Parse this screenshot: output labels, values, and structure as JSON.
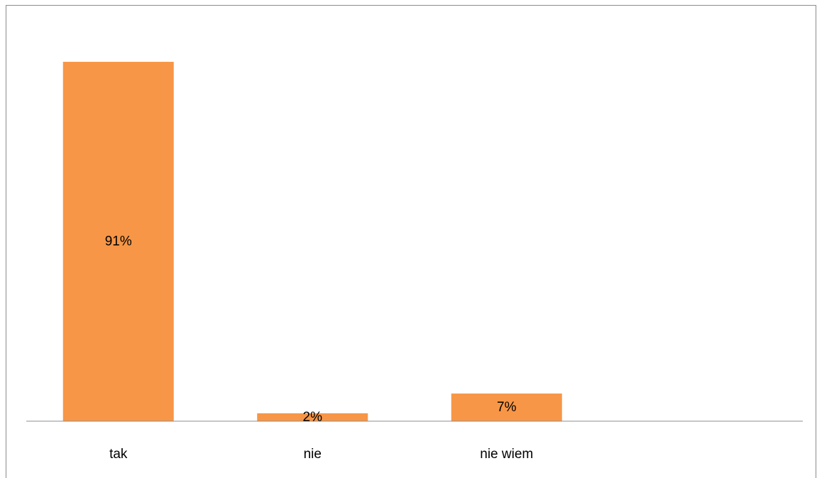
{
  "chart_data": {
    "type": "bar",
    "categories": [
      "tak",
      "nie",
      "nie wiem"
    ],
    "values": [
      91,
      2,
      7
    ],
    "value_labels": [
      "91%",
      "2%",
      "7%"
    ],
    "title": "",
    "xlabel": "",
    "ylabel": "",
    "ylim": [
      0,
      100
    ],
    "grid": false,
    "legend": "none",
    "bar_color": "#f79646",
    "axis_color": "#8c8c8c"
  }
}
